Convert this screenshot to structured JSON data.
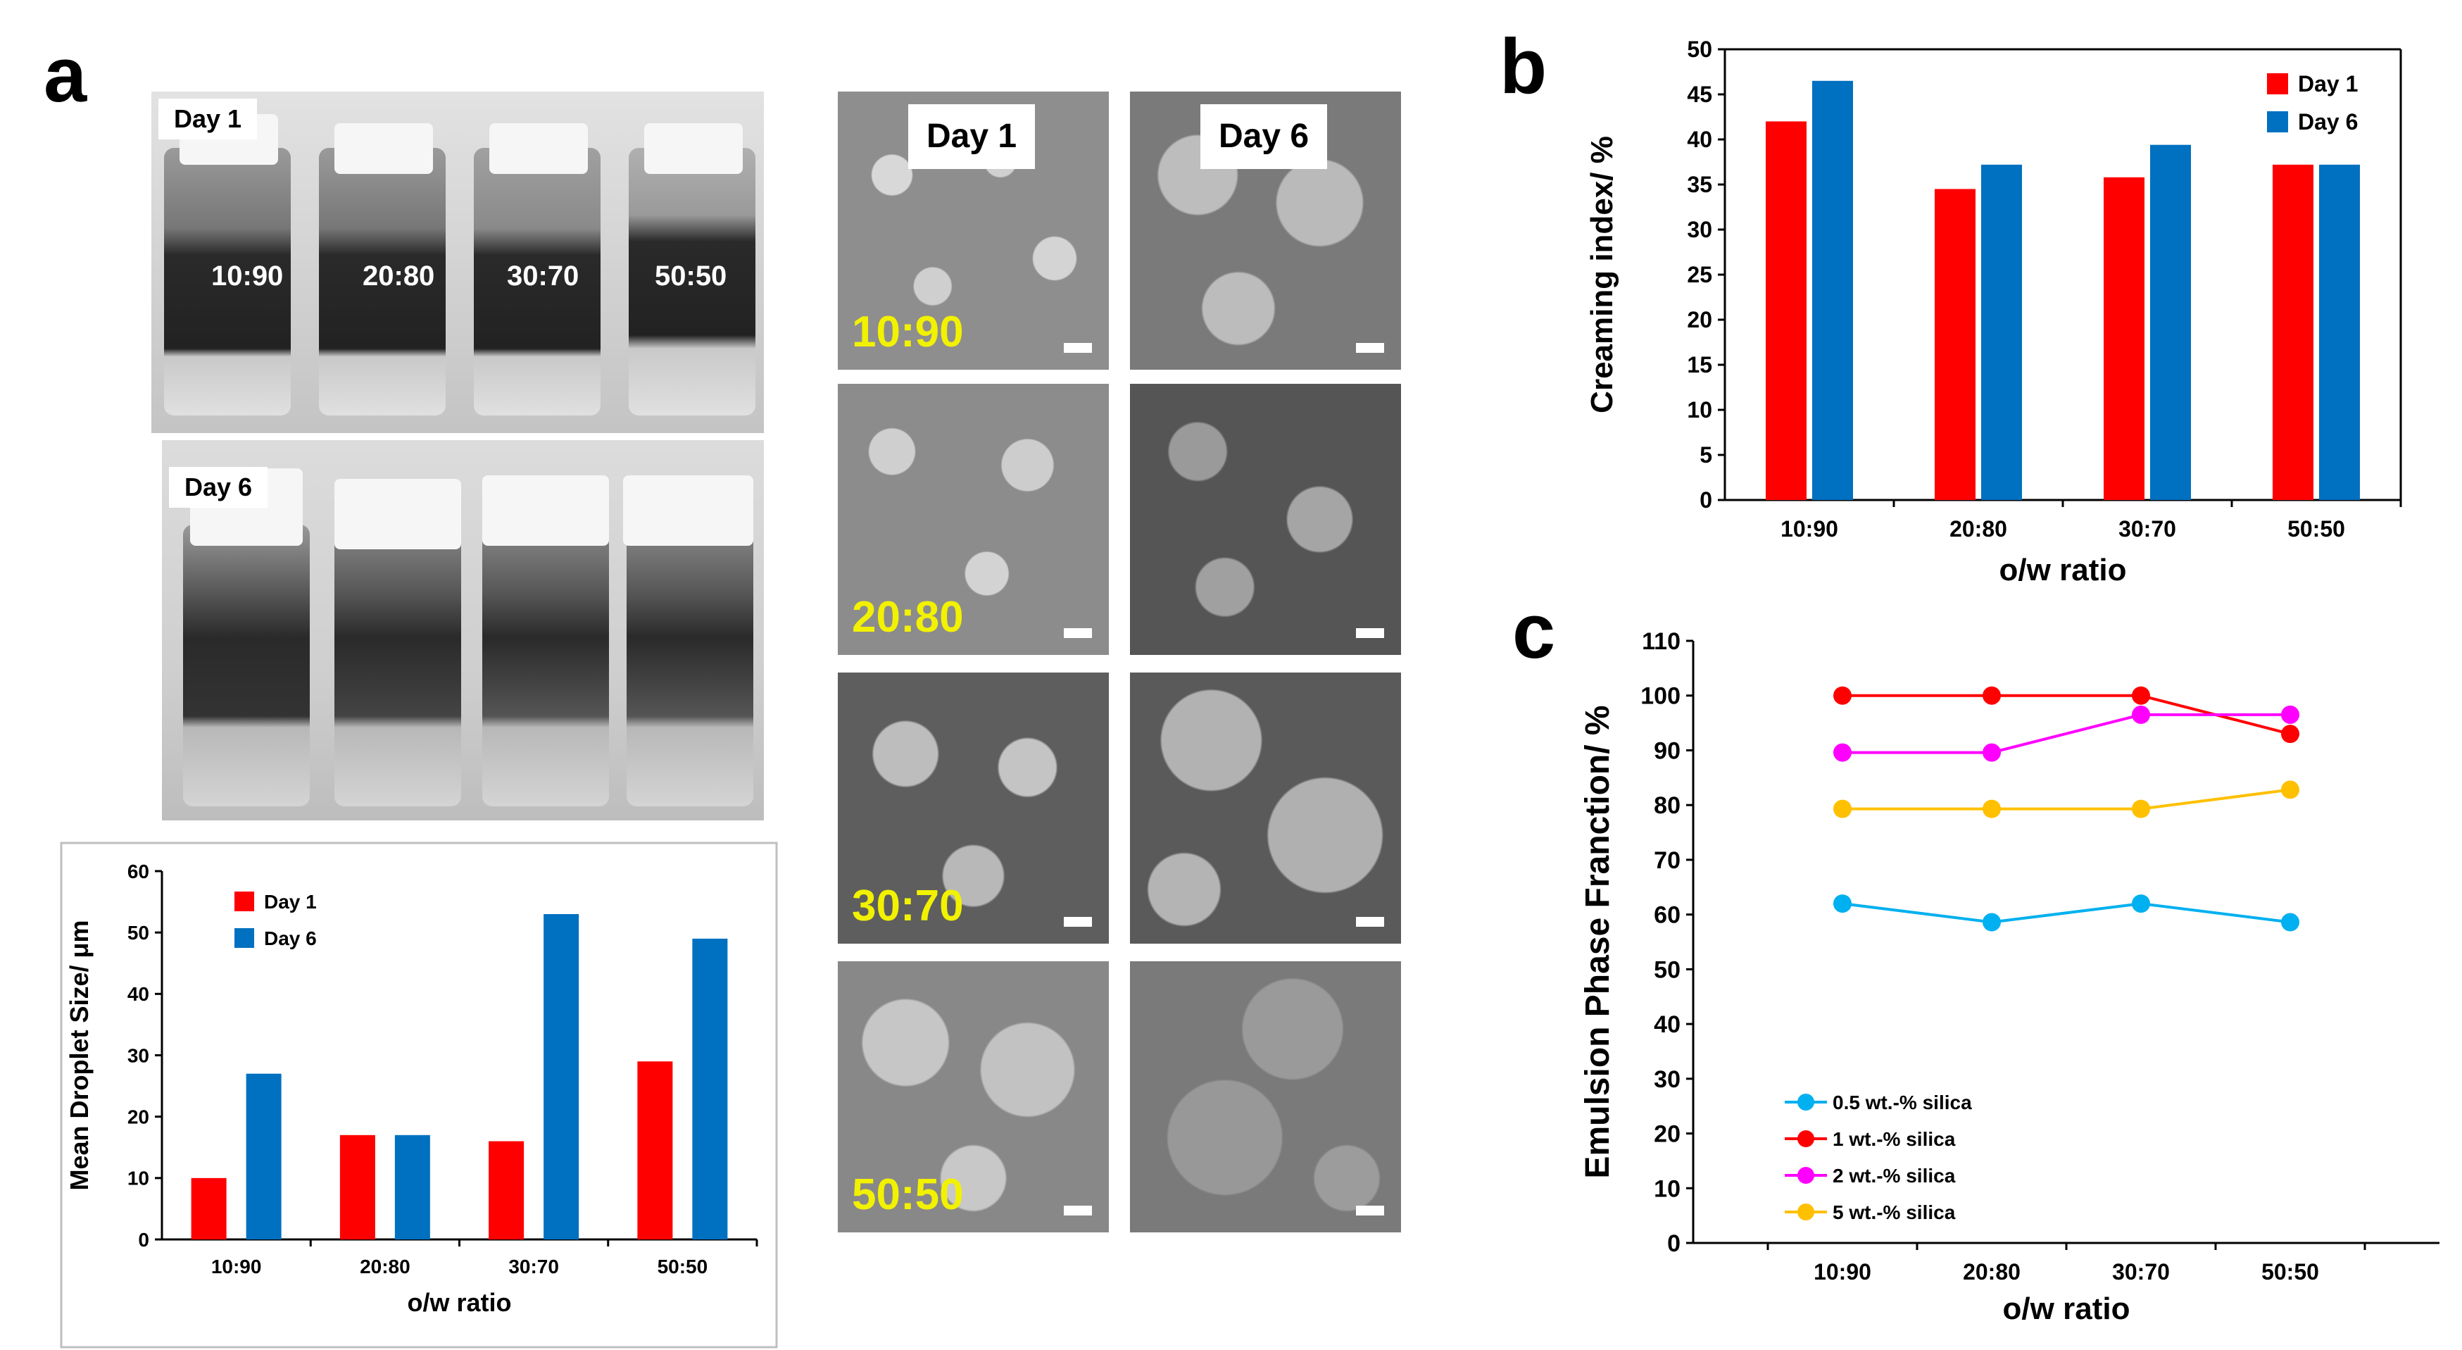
{
  "panels": {
    "a": "a",
    "b": "b",
    "c": "c"
  },
  "photos": {
    "day1_tag": "Day 1",
    "day6_tag": "Day 6",
    "vial_labels": [
      "10:90",
      "20:80",
      "30:70",
      "50:50"
    ]
  },
  "micrographs": {
    "col_headers": [
      "Day 1",
      "Day 6"
    ],
    "row_labels": [
      "10:90",
      "20:80",
      "30:70",
      "50:50"
    ]
  },
  "colors": {
    "day1": "#ff0000",
    "day6": "#0070c0",
    "s05": "#00b0f0",
    "s1": "#ff0000",
    "s2": "#ff00ff",
    "s5": "#ffc000"
  },
  "chart_data": [
    {
      "id": "droplet",
      "type": "bar",
      "categories": [
        "10:90",
        "20:80",
        "30:70",
        "50:50"
      ],
      "series": [
        {
          "name": "Day 1",
          "values": [
            10,
            17,
            16,
            29
          ]
        },
        {
          "name": "Day 6",
          "values": [
            27,
            17,
            53,
            49
          ]
        }
      ],
      "ylabel": "Mean Droplet Size/ μm",
      "xlabel": "o/w ratio",
      "ylim": [
        0,
        60
      ],
      "yticks": [
        0,
        10,
        20,
        30,
        40,
        50,
        60
      ],
      "legend": "top-left"
    },
    {
      "id": "creaming",
      "type": "bar",
      "categories": [
        "10:90",
        "20:80",
        "30:70",
        "50:50"
      ],
      "series": [
        {
          "name": "Day 1",
          "values": [
            42,
            34.5,
            35.8,
            37.2
          ]
        },
        {
          "name": "Day 6",
          "values": [
            46.5,
            37.2,
            39.4,
            37.2
          ]
        }
      ],
      "ylabel": "Creaming index/ %",
      "xlabel": "o/w ratio",
      "ylim": [
        0,
        50
      ],
      "yticks": [
        0,
        5,
        10,
        15,
        20,
        25,
        30,
        35,
        40,
        45,
        50
      ],
      "legend": "top-right"
    },
    {
      "id": "emulsion",
      "type": "line",
      "categories": [
        "10:90",
        "20:80",
        "30:70",
        "50:50"
      ],
      "series": [
        {
          "name": "0.5 wt.-% silica",
          "values": [
            62,
            58.6,
            62,
            58.6
          ]
        },
        {
          "name": "1 wt.-% silica",
          "values": [
            100,
            100,
            100,
            93
          ]
        },
        {
          "name": "2 wt.-% silica",
          "values": [
            89.6,
            89.6,
            96.5,
            96.5
          ]
        },
        {
          "name": "5 wt.-% silica",
          "values": [
            79.3,
            79.3,
            79.3,
            82.8
          ]
        }
      ],
      "ylabel": "Emulsion Phase Franction/ %",
      "xlabel": "o/w ratio",
      "ylim": [
        0,
        110
      ],
      "yticks": [
        0,
        10,
        20,
        30,
        40,
        50,
        60,
        70,
        80,
        90,
        100,
        110
      ],
      "legend": "bottom-left"
    }
  ]
}
